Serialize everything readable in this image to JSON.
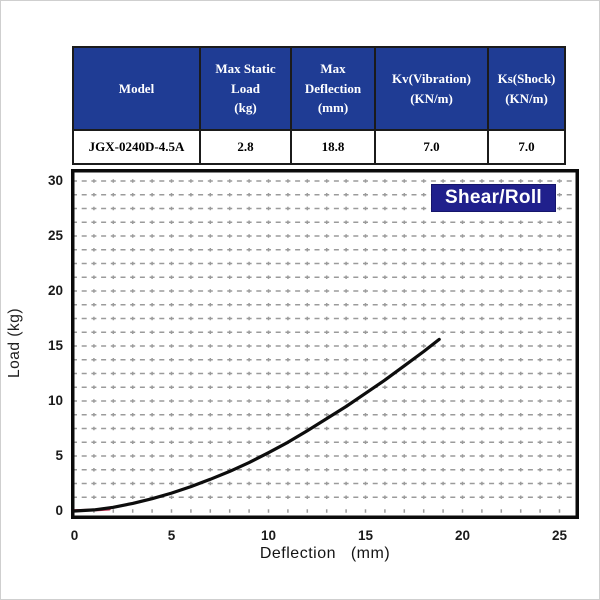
{
  "page": {
    "bg": "#ffffff",
    "frame_color": "#cfcfcf"
  },
  "spec_table": {
    "header_bg": "#1f3c94",
    "header_text_color": "#ffffff",
    "border_color": "#1b1b1b",
    "columns": [
      {
        "label": "Model"
      },
      {
        "label": "Max Static\nLoad\n(kg)"
      },
      {
        "label": "Max\nDeflection\n(mm)"
      },
      {
        "label": "Kv(Vibration)\n(KN/m)"
      },
      {
        "label": "Ks(Shock)\n(KN/m)"
      }
    ],
    "rows": [
      [
        "JGX-0240D-4.5A",
        "2.8",
        "18.8",
        "7.0",
        "7.0"
      ]
    ]
  },
  "chart_data": {
    "type": "line",
    "title": "Shear/Roll",
    "xlabel": "Deflection   (mm)",
    "ylabel": "Load (kg)",
    "xlim": [
      0,
      25.6
    ],
    "ylim": [
      0,
      31.1
    ],
    "xticks": [
      0,
      5,
      10,
      15,
      20,
      25
    ],
    "yticks": [
      0,
      5,
      10,
      15,
      20,
      25,
      30
    ],
    "grid": {
      "x_minor_step": 1,
      "y_minor_step": 1.25,
      "color": "#9b9b9b",
      "style": "dashed"
    },
    "legend_position": "top-right-badge",
    "badge": {
      "bg": "#20208c",
      "text_color": "#ffffff"
    },
    "series": [
      {
        "name": "load-deflection-curve",
        "color": "#0d0d0d",
        "stroke_width": 3.2,
        "points": [
          [
            0,
            0
          ],
          [
            1,
            0.1
          ],
          [
            2,
            0.34
          ],
          [
            3,
            0.69
          ],
          [
            4,
            1.12
          ],
          [
            5,
            1.63
          ],
          [
            6,
            2.22
          ],
          [
            7,
            2.88
          ],
          [
            8,
            3.6
          ],
          [
            9,
            4.4
          ],
          [
            10,
            5.3
          ],
          [
            11,
            6.25
          ],
          [
            12,
            7.3
          ],
          [
            13,
            8.4
          ],
          [
            14,
            9.5
          ],
          [
            15,
            10.7
          ],
          [
            16,
            11.9
          ],
          [
            17,
            13.2
          ],
          [
            18,
            14.5
          ],
          [
            18.8,
            15.6
          ]
        ]
      },
      {
        "name": "origin-red-segment",
        "color": "#c22a4e",
        "stroke_width": 2.6,
        "points": [
          [
            0,
            0.05
          ],
          [
            0.6,
            0.07
          ],
          [
            1.2,
            0.1
          ],
          [
            1.8,
            0.16
          ]
        ]
      }
    ]
  }
}
